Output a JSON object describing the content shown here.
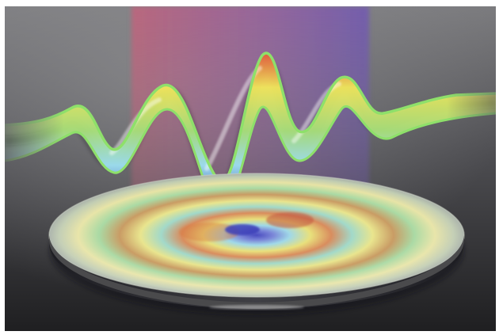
{
  "scene": {
    "palette": {
      "background_top": "#7b7b7e",
      "background_bottom": "#1f1f21",
      "beam_red": "#c0647c",
      "beam_violet": "#7058b4",
      "ribbon_edge": "#8ee06a",
      "ribbon_red": "#e45a3a",
      "ribbon_yellow": "#f2e85a",
      "ribbon_cyan": "#9ee0f2",
      "ribbon_blue": "#3b49b8",
      "disc_rim": "#3a3a3c"
    },
    "elements": [
      "background",
      "light-beam",
      "wave-ribbon",
      "pattern-disc"
    ]
  }
}
